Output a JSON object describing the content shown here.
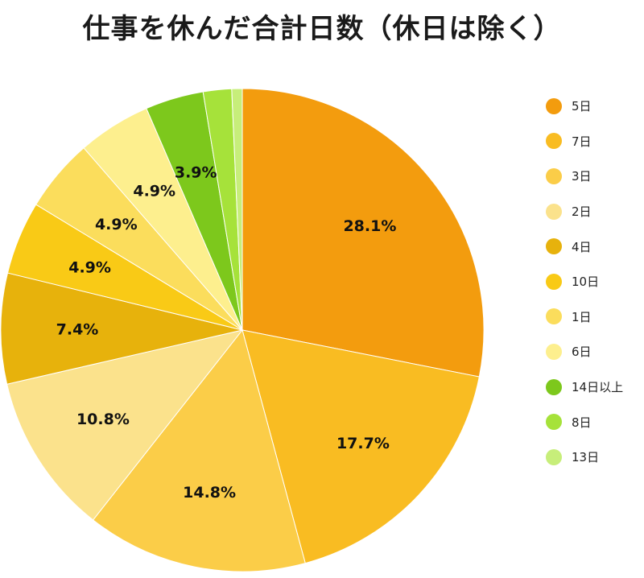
{
  "chart_data": {
    "type": "pie",
    "title": "仕事を休んだ合計日数（休日は除く）",
    "start_angle_deg": 0,
    "direction": "clockwise",
    "legend_position": "right",
    "slices": [
      {
        "label": "5日",
        "value": 28.1,
        "display": "28.1%",
        "color": "#F39C0E"
      },
      {
        "label": "7日",
        "value": 17.7,
        "display": "17.7%",
        "color": "#F9BC22"
      },
      {
        "label": "3日",
        "value": 14.8,
        "display": "14.8%",
        "color": "#FBCD48"
      },
      {
        "label": "2日",
        "value": 10.8,
        "display": "10.8%",
        "color": "#FBE28C"
      },
      {
        "label": "4日",
        "value": 7.4,
        "display": "7.4%",
        "color": "#E7B20C"
      },
      {
        "label": "10日",
        "value": 4.9,
        "display": "4.9%",
        "color": "#F9CA16"
      },
      {
        "label": "1日",
        "value": 4.9,
        "display": "4.9%",
        "color": "#FBDD5C"
      },
      {
        "label": "6日",
        "value": 4.9,
        "display": "4.9%",
        "color": "#FDEF8E"
      },
      {
        "label": "14日以上",
        "value": 3.9,
        "display": "3.9%",
        "color": "#7DC81C"
      },
      {
        "label": "8日",
        "value": 1.9,
        "display": "",
        "color": "#A6E23A"
      },
      {
        "label": "13日",
        "value": 0.7,
        "display": "",
        "color": "#C7EE7A"
      }
    ]
  }
}
